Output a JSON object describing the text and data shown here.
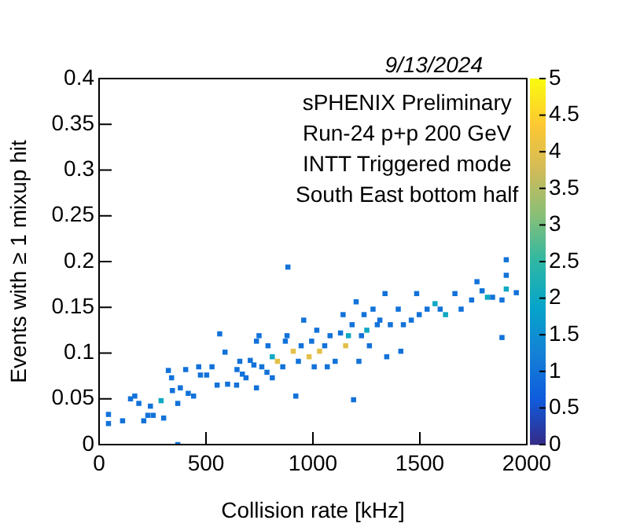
{
  "chart_data": {
    "type": "scatter",
    "xlabel": "Collision rate [kHz]",
    "ylabel": "Events with ≥ 1 mixup hit",
    "annotations": [
      "9/13/2024",
      "sPHENIX Preliminary",
      "Run-24 p+p 200 GeV",
      "INTT Triggered mode",
      "South East bottom half"
    ],
    "x": [
      44,
      44,
      110,
      147,
      167,
      186,
      209,
      240,
      228,
      253,
      290,
      302,
      324,
      339,
      343,
      368,
      368,
      405,
      380,
      417,
      442,
      466,
      474,
      503,
      528,
      564,
      589,
      601,
      552,
      643,
      645,
      658,
      670,
      687,
      707,
      724,
      736,
      748,
      761,
      785,
      790,
      810,
      834,
      859,
      879,
      883,
      908,
      920,
      932,
      945,
      957,
      982,
      994,
      1006,
      1018,
      1031,
      1055,
      1067,
      1080,
      1104,
      1129,
      1141,
      1153,
      1166,
      1183,
      1190,
      1202,
      1215,
      1227,
      1239,
      1252,
      1264,
      1281,
      1301,
      1313,
      1337,
      1345,
      1362,
      1399,
      1411,
      1423,
      1460,
      1485,
      1497,
      1534,
      1571,
      1595,
      1620,
      1664,
      1693,
      1742,
      1767,
      1791,
      1816,
      1840,
      1884,
      1884,
      1904,
      1904,
      1904,
      1951,
      871,
      810,
      736
    ],
    "values": [
      0.033,
      0.023,
      0.026,
      0.05,
      0.053,
      0.045,
      0.026,
      0.042,
      0.032,
      0.032,
      0.048,
      0.029,
      0.081,
      0.073,
      0.059,
      0.045,
      0.0,
      0.082,
      0.062,
      0.056,
      0.053,
      0.085,
      0.076,
      0.076,
      0.085,
      0.121,
      0.101,
      0.066,
      0.065,
      0.065,
      0.082,
      0.091,
      0.077,
      0.073,
      0.092,
      0.087,
      0.062,
      0.119,
      0.085,
      0.079,
      0.108,
      0.096,
      0.091,
      0.085,
      0.119,
      0.194,
      0.102,
      0.053,
      0.091,
      0.108,
      0.136,
      0.096,
      0.113,
      0.085,
      0.125,
      0.102,
      0.108,
      0.085,
      0.119,
      0.091,
      0.122,
      0.142,
      0.108,
      0.119,
      0.131,
      0.049,
      0.156,
      0.091,
      0.119,
      0.142,
      0.125,
      0.108,
      0.148,
      0.131,
      0.136,
      0.165,
      0.096,
      0.131,
      0.148,
      0.102,
      0.131,
      0.136,
      0.165,
      0.142,
      0.148,
      0.154,
      0.148,
      0.142,
      0.165,
      0.148,
      0.158,
      0.178,
      0.168,
      0.161,
      0.161,
      0.158,
      0.117,
      0.202,
      0.185,
      0.17,
      0.166,
      0.113,
      0.073,
      0.113
    ],
    "cvalues": [
      1,
      1,
      1,
      1,
      1,
      1,
      1,
      1,
      1,
      1,
      2,
      1,
      1,
      1,
      1,
      1,
      1,
      1,
      1,
      1,
      1,
      1,
      1,
      1,
      1,
      1,
      1,
      1,
      1,
      1,
      1,
      1,
      1,
      1,
      1,
      1,
      1,
      1,
      1,
      1,
      1,
      2,
      4,
      1,
      1,
      1,
      4,
      1,
      1,
      1,
      1,
      4,
      1,
      1,
      1,
      4,
      1,
      1,
      1,
      1,
      1,
      1,
      4,
      2,
      1,
      1,
      1,
      1,
      1,
      1,
      2,
      1,
      1,
      1,
      1,
      1,
      1,
      1,
      1,
      1,
      1,
      1,
      1,
      1,
      1,
      2,
      1,
      2,
      1,
      1,
      1,
      1,
      1,
      2,
      1,
      1,
      1,
      1,
      1,
      2,
      1,
      1,
      1,
      1
    ],
    "xlim": [
      0,
      2000
    ],
    "xticks": [
      0,
      500,
      1000,
      1500,
      2000
    ],
    "ylim": [
      0,
      0.4
    ],
    "yticks": [
      0,
      0.05,
      0.1,
      0.15,
      0.2,
      0.25,
      0.3,
      0.35,
      0.4
    ],
    "clim": [
      0,
      5
    ],
    "cticks": [
      0,
      0.5,
      1,
      1.5,
      2,
      2.5,
      3,
      3.5,
      4,
      4.5,
      5
    ],
    "marker": "square",
    "legend": false,
    "grid": false
  }
}
